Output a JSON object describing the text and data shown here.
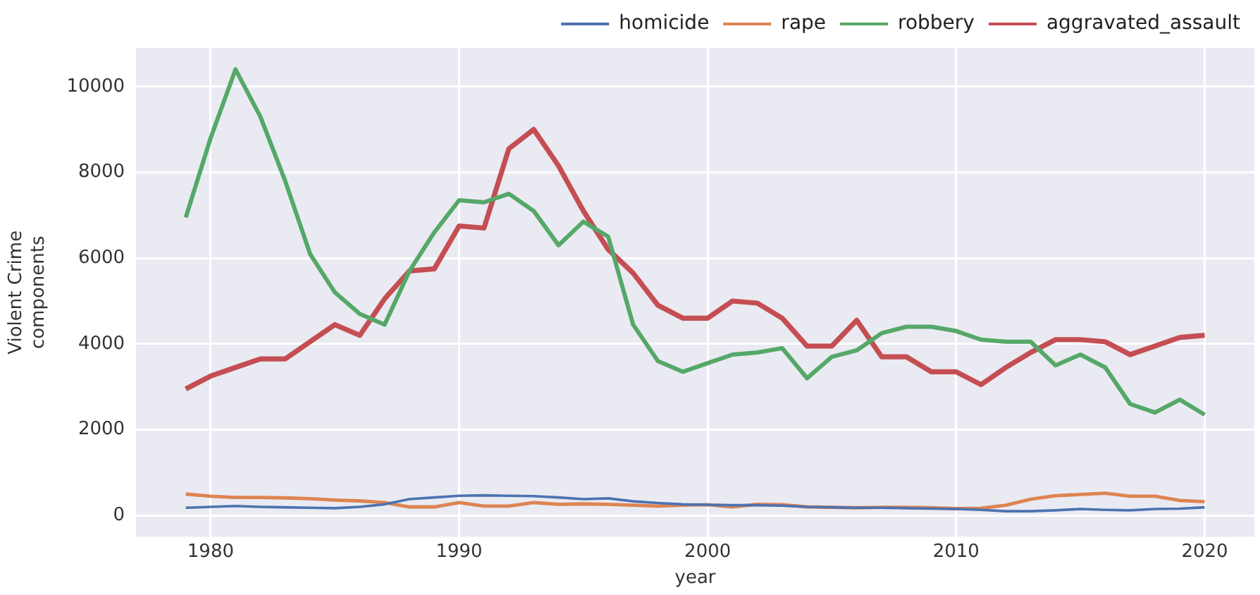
{
  "chart_data": {
    "type": "line",
    "xlabel": "year",
    "ylabel": "Violent Crime components",
    "x": [
      1979,
      1980,
      1981,
      1982,
      1983,
      1984,
      1985,
      1986,
      1987,
      1988,
      1989,
      1990,
      1991,
      1992,
      1993,
      1994,
      1995,
      1996,
      1997,
      1998,
      1999,
      2000,
      2001,
      2002,
      2003,
      2004,
      2005,
      2006,
      2007,
      2008,
      2009,
      2010,
      2011,
      2012,
      2013,
      2014,
      2015,
      2016,
      2017,
      2018,
      2019,
      2020
    ],
    "xlim": [
      1977,
      2022
    ],
    "xticks": [
      1980,
      1990,
      2000,
      2010,
      2020
    ],
    "ylim": [
      -500,
      10900
    ],
    "yticks": [
      0,
      2000,
      4000,
      6000,
      8000,
      10000
    ],
    "grid": true,
    "legend": "top",
    "marker": "none",
    "line_style": "solid",
    "series": [
      {
        "name": "homicide",
        "color": "#4c72b0",
        "values": [
          180,
          200,
          220,
          200,
          190,
          180,
          170,
          200,
          260,
          380,
          420,
          460,
          470,
          460,
          450,
          420,
          380,
          400,
          330,
          290,
          260,
          250,
          240,
          240,
          230,
          200,
          190,
          180,
          180,
          170,
          160,
          150,
          130,
          100,
          100,
          120,
          150,
          130,
          120,
          150,
          160,
          190
        ]
      },
      {
        "name": "rape",
        "color": "#dd8452",
        "values": [
          500,
          450,
          420,
          420,
          410,
          390,
          360,
          340,
          300,
          200,
          200,
          300,
          220,
          220,
          300,
          260,
          270,
          260,
          240,
          220,
          240,
          250,
          200,
          260,
          250,
          200,
          190,
          180,
          190,
          190,
          180,
          160,
          170,
          240,
          380,
          460,
          490,
          520,
          450,
          450,
          350,
          320
        ]
      },
      {
        "name": "robbery",
        "color": "#55a868",
        "values": [
          6950,
          8800,
          10400,
          9300,
          7800,
          6100,
          5200,
          4700,
          4450,
          5700,
          6600,
          7350,
          7300,
          7500,
          7100,
          6300,
          6850,
          6500,
          4450,
          3600,
          3350,
          3550,
          3750,
          3800,
          3900,
          3200,
          3700,
          3850,
          4250,
          4400,
          4400,
          4300,
          4100,
          4050,
          4050,
          3500,
          3750,
          3450,
          2600,
          2400,
          2700,
          2350
        ]
      },
      {
        "name": "aggravated_assault",
        "color": "#c44e52",
        "values": [
          2950,
          3250,
          3450,
          3650,
          3650,
          4050,
          4450,
          4200,
          5050,
          5700,
          5750,
          6750,
          6700,
          8550,
          9000,
          8150,
          7100,
          6200,
          5650,
          4900,
          4600,
          4600,
          5000,
          4950,
          4600,
          3950,
          3950,
          4550,
          3700,
          3700,
          3350,
          3350,
          3050,
          3450,
          3800,
          4100,
          4100,
          4050,
          3750,
          3950,
          4150,
          4200
        ]
      }
    ]
  }
}
